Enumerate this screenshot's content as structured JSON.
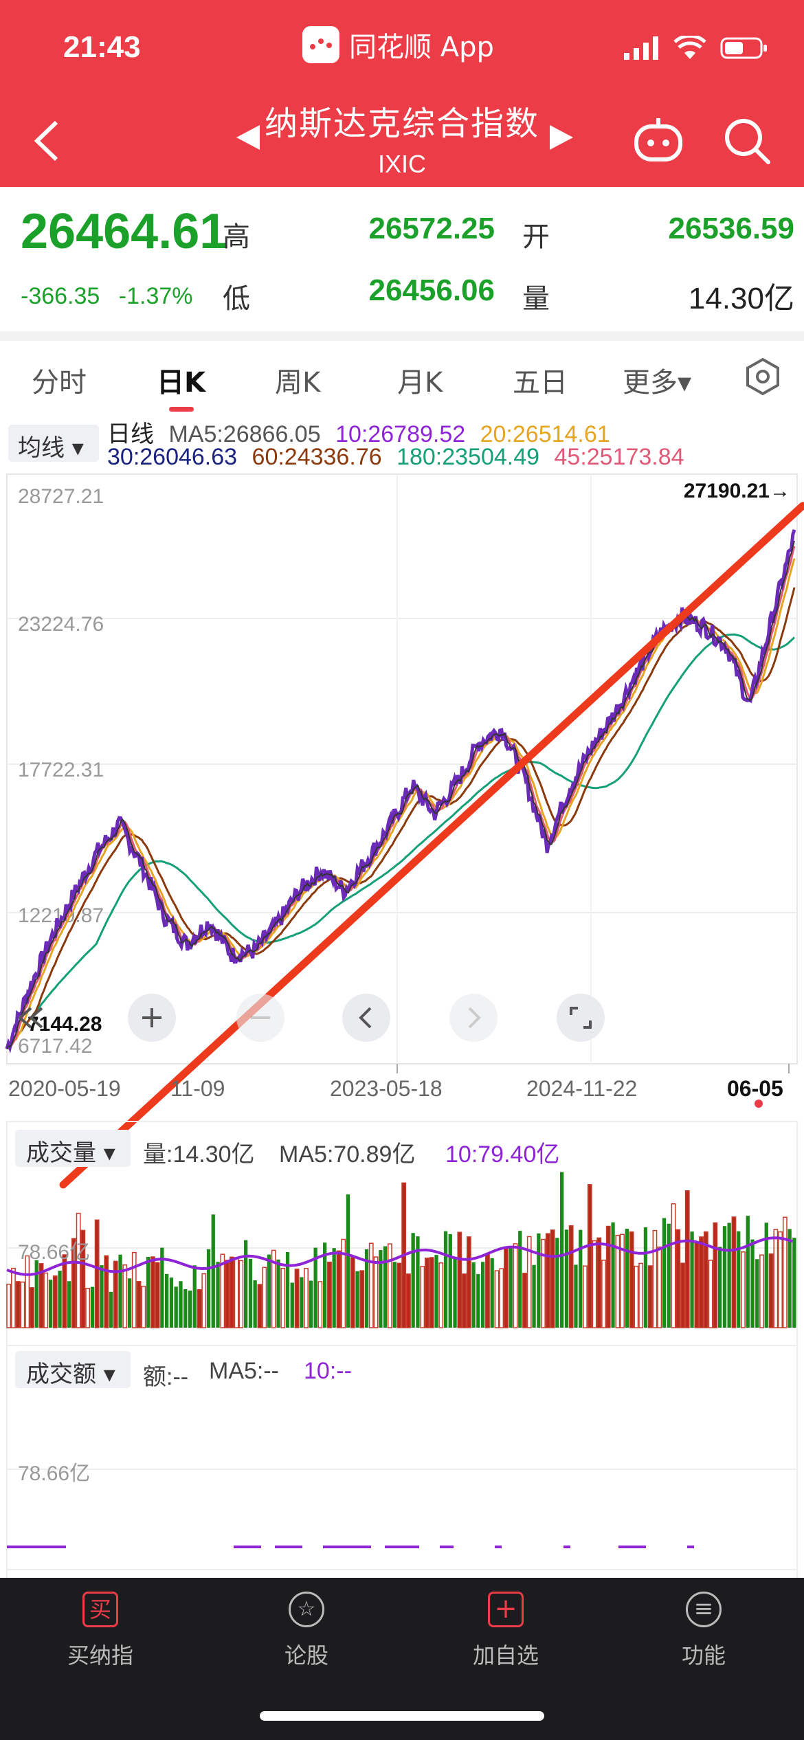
{
  "status_bar": {
    "time": "21:43",
    "app_name": "同花顺 App"
  },
  "nav": {
    "title": "纳斯达克综合指数",
    "code": "IXIC"
  },
  "quote": {
    "price": "26464.61",
    "change": "-366.35",
    "change_pct": "-1.37%",
    "high_label": "高",
    "high": "26572.25",
    "open_label": "开",
    "open": "26536.59",
    "low_label": "低",
    "low": "26456.06",
    "volume_label": "量",
    "volume": "14.30亿"
  },
  "tabs": [
    "分时",
    "日K",
    "周K",
    "月K",
    "五日",
    "更多▾"
  ],
  "ma_legend": {
    "selector": "均线 ▾",
    "type": "日线",
    "ma5": "MA5:26866.05",
    "ma10": "10:26789.52",
    "ma20": "20:26514.61",
    "ma30": "30:26046.63",
    "ma60": "60:24336.76",
    "ma180": "180:23504.49",
    "ma45": "45:25173.84",
    "colors": {
      "ma5": "#555555",
      "ma10": "#8e24d6",
      "ma20": "#e6a520",
      "ma30": "#1a237e",
      "ma60": "#8b3a0e",
      "ma180": "#15a078",
      "ma45": "#e05a78"
    }
  },
  "chart": {
    "y_labels": [
      "28727.21",
      "23224.76",
      "17722.31",
      "12219.87",
      "6717.42"
    ],
    "max_marker": "27190.21→",
    "min_marker": "7144.28",
    "x_labels": [
      "2020-05-19",
      "11-09",
      "2023-05-18",
      "2024-11-22",
      "06-05"
    ],
    "colors": {
      "up": "#ec3c47",
      "down": "#1b8a1b",
      "trendline": "#ee3a1c"
    }
  },
  "chart_data": {
    "type": "line",
    "series_samples_index": [
      7144,
      9500,
      11500,
      13200,
      14800,
      15900,
      14300,
      12300,
      11200,
      12100,
      10800,
      10950,
      12000,
      13300,
      14100,
      13300,
      14500,
      15800,
      17400,
      16300,
      17500,
      19100,
      19600,
      17700,
      15100,
      17300,
      18900,
      20200,
      21800,
      23300,
      24000,
      23600,
      22800,
      20500,
      23900,
      27190
    ],
    "ylim": [
      6717.42,
      28727.21
    ]
  },
  "volume_panel": {
    "selector": "成交量 ▾",
    "vol": "量:14.30亿",
    "ma5": "MA5:70.89亿",
    "ma10": "10:79.40亿",
    "y_label": "78.66亿"
  },
  "amount_panel": {
    "selector": "成交额 ▾",
    "amt": "额:--",
    "ma5": "MA5:--",
    "ma10": "10:--",
    "y_label": "78.66亿"
  },
  "bottom_bar": [
    {
      "label": "买纳指",
      "icon_char": "买"
    },
    {
      "label": "论股",
      "icon_char": "☆"
    },
    {
      "label": "加自选",
      "icon_char": "+"
    },
    {
      "label": "功能",
      "icon_char": "≡"
    }
  ]
}
